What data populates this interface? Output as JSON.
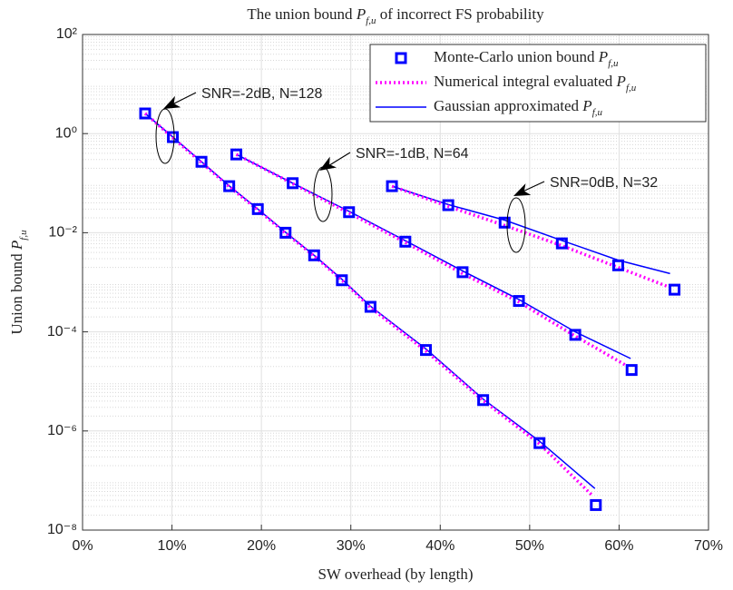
{
  "chart_data": {
    "type": "line",
    "title": [
      {
        "text": "The union bound "
      },
      {
        "text": "P",
        "style": "italic"
      },
      {
        "text": "f,u",
        "style": "sub"
      },
      {
        "text": " of incorrect FS probability"
      }
    ],
    "xlabel": [
      {
        "text": "SW overhead (by length)"
      }
    ],
    "ylabel": [
      {
        "text": "Union bound "
      },
      {
        "text": "P",
        "style": "italic"
      },
      {
        "text": "f,u",
        "style": "sub"
      }
    ],
    "log_y": true,
    "grid": true,
    "legend": "top-right",
    "xlim": [
      0,
      70
    ],
    "xticks": [
      {
        "value": 0,
        "label": "0%"
      },
      {
        "value": 10,
        "label": "10%"
      },
      {
        "value": 20,
        "label": "20%"
      },
      {
        "value": 30,
        "label": "30%"
      },
      {
        "value": 40,
        "label": "40%"
      },
      {
        "value": 50,
        "label": "50%"
      },
      {
        "value": 60,
        "label": "60%"
      },
      {
        "value": 70,
        "label": "70%"
      }
    ],
    "ylim": [
      1e-08,
      100
    ],
    "yticks": [
      {
        "value": 100,
        "label": "10²"
      },
      {
        "value": 1,
        "label": "10⁰"
      },
      {
        "value": 0.01,
        "label": "10⁻²"
      },
      {
        "value": 0.0001,
        "label": "10⁻⁴"
      },
      {
        "value": 1e-06,
        "label": "10⁻⁶"
      },
      {
        "value": 1e-08,
        "label": "10⁻⁸"
      }
    ],
    "series": [
      {
        "name": [
          {
            "text": "Monte-Carlo union bound "
          },
          {
            "text": "P",
            "style": "italic"
          },
          {
            "text": "f,u",
            "style": "sub"
          }
        ],
        "color": "#0000ff",
        "marker": "square",
        "curves": [
          {
            "x": [
              7.0,
              10.1,
              13.3,
              16.4,
              19.6,
              22.7,
              25.9,
              29.0,
              32.2,
              38.4,
              44.8,
              51.1,
              57.4
            ],
            "values": [
              2.55,
              0.85,
              0.27,
              0.087,
              0.03,
              0.01,
              0.0035,
              0.0011,
              0.00032,
              4.3e-05,
              4.2e-06,
              5.7e-07,
              3.2e-08
            ]
          },
          {
            "x": [
              17.2,
              23.5,
              29.8,
              36.1,
              42.5,
              48.8,
              55.1,
              61.4
            ],
            "values": [
              0.38,
              0.1,
              0.026,
              0.0066,
              0.0016,
              0.00042,
              8.7e-05,
              1.7e-05
            ]
          },
          {
            "x": [
              34.6,
              40.9,
              47.2,
              53.6,
              59.9,
              66.2
            ],
            "values": [
              0.087,
              0.036,
              0.016,
              0.0061,
              0.0022,
              0.00071
            ]
          }
        ]
      },
      {
        "name": [
          {
            "text": "Numerical integral evaluated "
          },
          {
            "text": "P",
            "style": "italic"
          },
          {
            "text": "f,u",
            "style": "sub"
          }
        ],
        "color": "#ff00ff",
        "line_style": "dotted",
        "curves": [
          {
            "x": [
              7.0,
              10.1,
              13.3,
              16.4,
              19.6,
              22.7,
              25.9,
              29.0,
              32.2,
              38.4,
              44.8,
              51.1,
              57.0
            ],
            "values": [
              2.55,
              0.82,
              0.26,
              0.085,
              0.029,
              0.0098,
              0.0034,
              0.0011,
              0.00031,
              4.1e-05,
              4.1e-06,
              5.5e-07,
              5e-08
            ]
          },
          {
            "x": [
              17.2,
              23.5,
              29.8,
              36.1,
              42.5,
              48.8,
              55.1,
              61.0
            ],
            "values": [
              0.38,
              0.098,
              0.025,
              0.0064,
              0.0015,
              0.0004,
              8.2e-05,
              2e-05
            ]
          },
          {
            "x": [
              34.6,
              40.9,
              47.2,
              53.6,
              59.9,
              66.0
            ],
            "values": [
              0.087,
              0.034,
              0.014,
              0.0055,
              0.002,
              0.00075
            ]
          }
        ]
      },
      {
        "name": [
          {
            "text": "Gaussian approximated "
          },
          {
            "text": "P",
            "style": "italic"
          },
          {
            "text": "f,u",
            "style": "sub"
          }
        ],
        "color": "#0000ff",
        "line_style": "solid",
        "curves": [
          {
            "x": [
              7.0,
              10.1,
              13.3,
              16.4,
              19.6,
              22.7,
              25.9,
              29.0,
              32.2,
              38.4,
              44.8,
              51.1,
              57.3
            ],
            "values": [
              2.55,
              0.85,
              0.27,
              0.088,
              0.03,
              0.0102,
              0.0035,
              0.00115,
              0.00033,
              4.5e-05,
              4.4e-06,
              6.2e-07,
              6.9e-08
            ]
          },
          {
            "x": [
              17.2,
              23.5,
              29.8,
              36.1,
              42.5,
              48.8,
              55.1,
              61.3
            ],
            "values": [
              0.38,
              0.1,
              0.027,
              0.0069,
              0.0017,
              0.00045,
              0.0001,
              2.9e-05
            ]
          },
          {
            "x": [
              34.6,
              40.9,
              47.2,
              53.6,
              59.9,
              65.7
            ],
            "values": [
              0.087,
              0.037,
              0.018,
              0.007,
              0.0028,
              0.0015
            ]
          }
        ]
      }
    ],
    "annotations": [
      {
        "text": "SNR=-2dB, N=128"
      },
      {
        "text": "SNR=-1dB, N=64"
      },
      {
        "text": "SNR=0dB, N=32"
      }
    ]
  }
}
